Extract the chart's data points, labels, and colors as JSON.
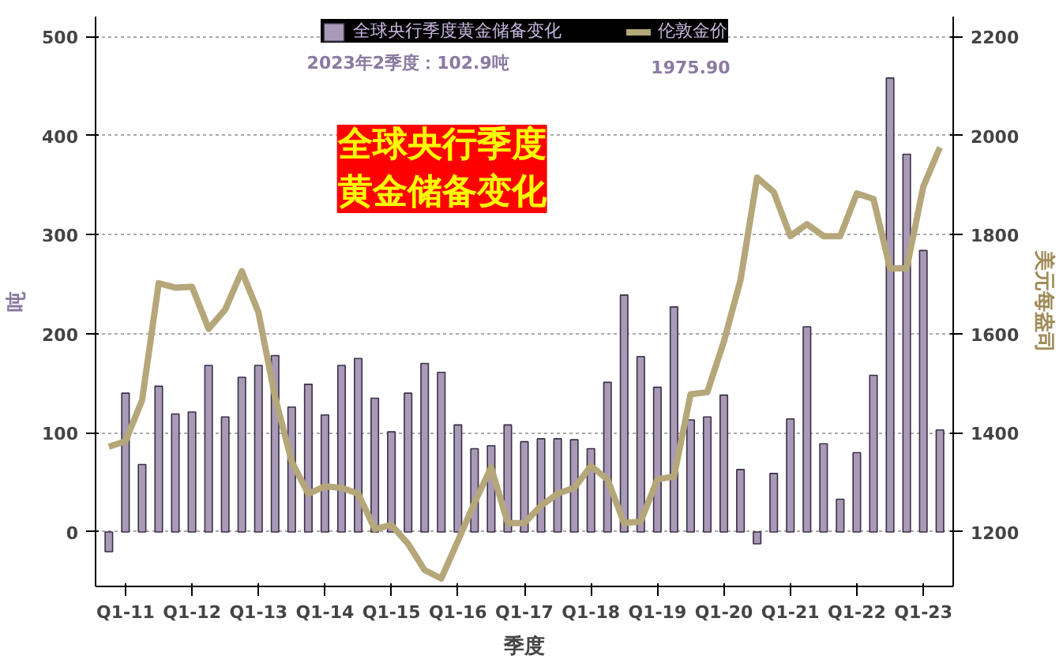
{
  "chart_data": {
    "type": "bar",
    "title": "全球央行季度黄金储备变化",
    "xlabel": "季度",
    "ylabel": "吨",
    "y2label": "美元每盎司",
    "categories": [
      null,
      "Q1-11",
      null,
      null,
      null,
      "Q1-12",
      null,
      null,
      null,
      "Q1-13",
      null,
      null,
      null,
      "Q1-14",
      null,
      null,
      null,
      "Q1-15",
      null,
      null,
      null,
      "Q1-16",
      null,
      null,
      null,
      "Q1-17",
      null,
      null,
      null,
      "Q1-18",
      null,
      null,
      null,
      "Q1-19",
      null,
      null,
      null,
      "Q1-20",
      null,
      null,
      null,
      "Q1-21",
      null,
      null,
      null,
      "Q1-22",
      null,
      null,
      null,
      "Q1-23",
      null
    ],
    "series": [
      {
        "name": "全球央行季度黄金储备变化",
        "color": "#a99bb8",
        "values": [
          -20,
          140,
          68,
          147,
          119,
          121,
          168,
          116,
          156,
          168,
          178,
          126,
          149,
          118,
          168,
          175,
          135,
          101,
          140,
          170,
          161,
          108,
          84,
          87,
          108,
          91,
          94,
          94,
          93,
          84,
          151,
          239,
          177,
          146,
          227,
          113,
          116,
          138,
          63,
          -12,
          59,
          114,
          207,
          89,
          33,
          80,
          158,
          458,
          381,
          284,
          102.9
        ]
      },
      {
        "name": "伦敦金价",
        "type": "line",
        "axis": "y2",
        "color": "#b5a77a",
        "values": [
          1372,
          1383,
          1466,
          1702,
          1693,
          1695,
          1610,
          1649,
          1726,
          1643,
          1472,
          1342,
          1277,
          1292,
          1289,
          1277,
          1206,
          1214,
          1176,
          1123,
          1106,
          1182,
          1259,
          1330,
          1218,
          1218,
          1253,
          1277,
          1289,
          1333,
          1306,
          1218,
          1221,
          1306,
          1312,
          1478,
          1482,
          1584,
          1708,
          1915,
          1886,
          1797,
          1821,
          1797,
          1797,
          1883,
          1872,
          1732,
          1732,
          1897,
          1975.9
        ]
      }
    ],
    "annotations": [
      "2023年2季度：102.9吨",
      "1975.90"
    ],
    "ylim": [
      -55,
      520
    ],
    "yticks": [
      0,
      100,
      200,
      300,
      400,
      500
    ],
    "y2lim": [
      1090,
      2240
    ],
    "y2ticks": [
      1200,
      1400,
      1600,
      1800,
      2000,
      2200
    ],
    "grid": "y",
    "legend": "top"
  }
}
